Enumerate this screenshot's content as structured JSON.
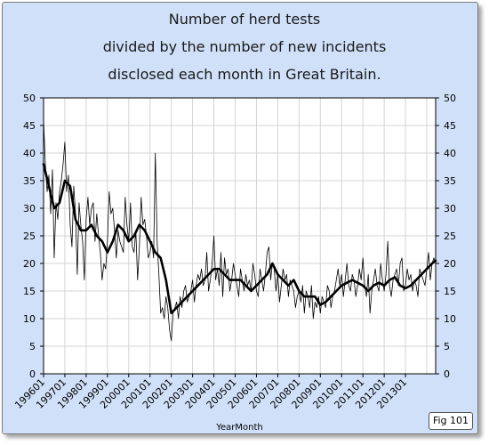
{
  "chart_data": {
    "type": "line",
    "title_lines": [
      "Number of herd tests",
      "divided by the number of new incidents",
      "disclosed each month in Great Britain."
    ],
    "xlabel": "YearMonth",
    "ylabel": "",
    "ylim": [
      0,
      50
    ],
    "yticks": [
      0,
      5,
      10,
      15,
      20,
      25,
      30,
      35,
      40,
      45,
      50
    ],
    "xlim": [
      "199601",
      "201406"
    ],
    "xticks": [
      "199601",
      "199701",
      "199801",
      "199901",
      "200001",
      "200101",
      "200201",
      "200301",
      "200401",
      "200501",
      "200601",
      "200701",
      "200801",
      "200901",
      "201001",
      "201101",
      "201201",
      "201301"
    ],
    "grid": true,
    "series": [
      {
        "style": "thin-monthly",
        "x": [
          "199601",
          "199602",
          "199603",
          "199604",
          "199605",
          "199606",
          "199607",
          "199608",
          "199609",
          "199610",
          "199611",
          "199612",
          "199701",
          "199702",
          "199703",
          "199704",
          "199705",
          "199706",
          "199707",
          "199708",
          "199709",
          "199710",
          "199711",
          "199712",
          "199801",
          "199802",
          "199803",
          "199804",
          "199805",
          "199806",
          "199807",
          "199808",
          "199809",
          "199810",
          "199811",
          "199812",
          "199901",
          "199902",
          "199903",
          "199904",
          "199905",
          "199906",
          "199907",
          "199908",
          "199909",
          "199910",
          "199911",
          "199912",
          "200001",
          "200002",
          "200003",
          "200004",
          "200005",
          "200006",
          "200007",
          "200008",
          "200009",
          "200010",
          "200011",
          "200012",
          "200101",
          "200102",
          "200103",
          "200104",
          "200105",
          "200106",
          "200107",
          "200108",
          "200109",
          "200110",
          "200111",
          "200112",
          "200201",
          "200202",
          "200203",
          "200204",
          "200205",
          "200206",
          "200207",
          "200208",
          "200209",
          "200210",
          "200211",
          "200212",
          "200301",
          "200302",
          "200303",
          "200304",
          "200305",
          "200306",
          "200307",
          "200308",
          "200309",
          "200310",
          "200311",
          "200312",
          "200401",
          "200402",
          "200403",
          "200404",
          "200405",
          "200406",
          "200407",
          "200408",
          "200409",
          "200410",
          "200411",
          "200412",
          "200501",
          "200502",
          "200503",
          "200504",
          "200505",
          "200506",
          "200507",
          "200508",
          "200509",
          "200510",
          "200511",
          "200512",
          "200601",
          "200602",
          "200603",
          "200604",
          "200605",
          "200606",
          "200607",
          "200608",
          "200609",
          "200610",
          "200611",
          "200612",
          "200701",
          "200702",
          "200703",
          "200704",
          "200705",
          "200706",
          "200707",
          "200708",
          "200709",
          "200710",
          "200711",
          "200712",
          "200801",
          "200802",
          "200803",
          "200804",
          "200805",
          "200806",
          "200807",
          "200808",
          "200809",
          "200810",
          "200811",
          "200812",
          "200901",
          "200902",
          "200903",
          "200904",
          "200905",
          "200906",
          "200907",
          "200908",
          "200909",
          "200910",
          "200911",
          "200912",
          "201001",
          "201002",
          "201003",
          "201004",
          "201005",
          "201006",
          "201007",
          "201008",
          "201009",
          "201010",
          "201011",
          "201012",
          "201101",
          "201102",
          "201103",
          "201104",
          "201105",
          "201106",
          "201107",
          "201108",
          "201109",
          "201110",
          "201111",
          "201112",
          "201201",
          "201202",
          "201203",
          "201204",
          "201205",
          "201206",
          "201207",
          "201208",
          "201209",
          "201210",
          "201211",
          "201212",
          "201301",
          "201302",
          "201303",
          "201304",
          "201305",
          "201306",
          "201307",
          "201308",
          "201309",
          "201310",
          "201311",
          "201312",
          "201401",
          "201402",
          "201403",
          "201404",
          "201405",
          "201406"
        ],
        "values": [
          46,
          38,
          33,
          36,
          29,
          37,
          21,
          31,
          28,
          33,
          35,
          38,
          42,
          33,
          36,
          27,
          23,
          34,
          29,
          18,
          31,
          27,
          24,
          17,
          28,
          32,
          27,
          30,
          31,
          24,
          29,
          25,
          22,
          17,
          20,
          19,
          24,
          33,
          29,
          30,
          26,
          21,
          26,
          24,
          23,
          22,
          32,
          27,
          24,
          31,
          23,
          22,
          26,
          17,
          23,
          32,
          27,
          28,
          25,
          21,
          22,
          24,
          21,
          40,
          24,
          18,
          11,
          12,
          10,
          14,
          12,
          8,
          6,
          11,
          12,
          13,
          10,
          14,
          12,
          15,
          16,
          13,
          14,
          15,
          17,
          13,
          16,
          18,
          17,
          19,
          16,
          17,
          22,
          15,
          17,
          20,
          25,
          17,
          19,
          16,
          22,
          14,
          21,
          18,
          19,
          15,
          17,
          20,
          18,
          16,
          14,
          19,
          17,
          15,
          18,
          16,
          17,
          15,
          20,
          18,
          15,
          14,
          19,
          17,
          15,
          18,
          22,
          23,
          17,
          20,
          19,
          15,
          18,
          13,
          16,
          19,
          17,
          18,
          14,
          17,
          16,
          15,
          12,
          14,
          15,
          13,
          16,
          11,
          15,
          14,
          12,
          16,
          10,
          13,
          12,
          14,
          11,
          14,
          13,
          12,
          16,
          15,
          12,
          14,
          15,
          17,
          19,
          16,
          18,
          14,
          17,
          20,
          16,
          15,
          18,
          17,
          14,
          16,
          19,
          17,
          21,
          16,
          14,
          18,
          11,
          15,
          17,
          19,
          16,
          15,
          20,
          17,
          15,
          18,
          24,
          16,
          14,
          17,
          18,
          19,
          16,
          20,
          21,
          15,
          16,
          19,
          17,
          18,
          15,
          17,
          16,
          14,
          19,
          18,
          17,
          16,
          19,
          22,
          17,
          20,
          21,
          20
        ],
        "color": "#000000"
      },
      {
        "style": "thick-trend",
        "x": [
          "199601",
          "199604",
          "199607",
          "199610",
          "199701",
          "199704",
          "199707",
          "199710",
          "199801",
          "199804",
          "199807",
          "199810",
          "199901",
          "199904",
          "199907",
          "199910",
          "200001",
          "200004",
          "200007",
          "200010",
          "200101",
          "200104",
          "200107",
          "200110",
          "200201",
          "200204",
          "200207",
          "200210",
          "200301",
          "200304",
          "200307",
          "200310",
          "200401",
          "200404",
          "200407",
          "200410",
          "200501",
          "200504",
          "200507",
          "200510",
          "200601",
          "200604",
          "200607",
          "200610",
          "200701",
          "200704",
          "200707",
          "200710",
          "200801",
          "200804",
          "200807",
          "200810",
          "200901",
          "200904",
          "200907",
          "200910",
          "201001",
          "201004",
          "201007",
          "201010",
          "201101",
          "201104",
          "201107",
          "201110",
          "201201",
          "201204",
          "201207",
          "201210",
          "201301",
          "201304",
          "201307",
          "201310",
          "201401",
          "201404",
          "201406"
        ],
        "values": [
          38,
          34,
          30,
          31,
          35,
          34,
          28,
          26,
          26,
          27,
          25,
          24,
          22,
          24,
          27,
          26,
          24,
          25,
          27,
          26,
          24,
          22,
          21,
          17,
          11,
          12,
          13,
          14,
          15,
          16,
          17,
          18,
          19,
          19,
          18,
          17,
          17,
          17,
          16,
          15,
          16,
          17,
          18,
          20,
          18,
          17,
          16,
          17,
          15,
          14,
          14,
          14,
          12.5,
          13,
          14,
          15,
          16,
          16.5,
          17,
          16.5,
          16,
          15,
          16,
          16.5,
          16,
          17,
          17.5,
          16,
          15.5,
          16,
          17,
          18,
          19,
          20,
          20.5
        ],
        "color": "#000000"
      }
    ]
  },
  "fig_label": "Fig 101"
}
